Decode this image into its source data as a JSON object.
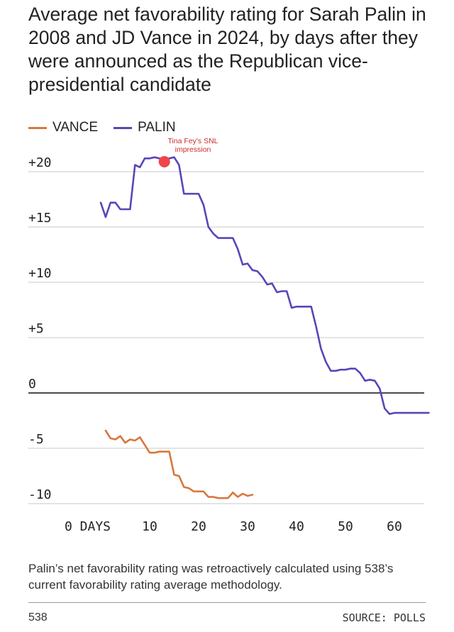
{
  "chart_data": {
    "type": "line",
    "title": "Average net favorability rating for Sarah Palin in 2008 and JD Vance in 2024, by days after they were announced as the Republican vice-presidential candidate",
    "xlabel": "",
    "ylabel": "",
    "xlim": [
      0,
      67
    ],
    "ylim": [
      -11,
      21.5
    ],
    "x_ticks": [
      {
        "value": 0,
        "label": "0 DAYS"
      },
      {
        "value": 10,
        "label": "10"
      },
      {
        "value": 20,
        "label": "20"
      },
      {
        "value": 30,
        "label": "30"
      },
      {
        "value": 40,
        "label": "40"
      },
      {
        "value": 50,
        "label": "50"
      },
      {
        "value": 60,
        "label": "60"
      }
    ],
    "y_ticks": [
      {
        "value": 20,
        "label": "+20"
      },
      {
        "value": 15,
        "label": "+15"
      },
      {
        "value": 10,
        "label": "+10"
      },
      {
        "value": 5,
        "label": "+5"
      },
      {
        "value": 0,
        "label": "0"
      },
      {
        "value": -5,
        "label": "-5"
      },
      {
        "value": -10,
        "label": "-10"
      }
    ],
    "grid": true,
    "legend_position": "top-left",
    "series": [
      {
        "name": "VANCE",
        "color": "#d9773d",
        "x": [
          1,
          2,
          3,
          4,
          5,
          6,
          7,
          8,
          10,
          11,
          12,
          13,
          14,
          15,
          16,
          17,
          18,
          19,
          20,
          21,
          22,
          23,
          24,
          25,
          26,
          27,
          28,
          29,
          30,
          31
        ],
        "y": [
          -3.4,
          -4.1,
          -4.2,
          -3.9,
          -4.5,
          -4.2,
          -4.3,
          -4.0,
          -5.4,
          -5.4,
          -5.3,
          -5.3,
          -5.3,
          -7.4,
          -7.5,
          -8.5,
          -8.6,
          -8.9,
          -8.9,
          -8.9,
          -9.4,
          -9.4,
          -9.5,
          -9.5,
          -9.5,
          -9.0,
          -9.4,
          -9.1,
          -9.3,
          -9.2
        ]
      },
      {
        "name": "PALIN",
        "color": "#5b45b8",
        "x": [
          0,
          1,
          2,
          3,
          4,
          5,
          6,
          7,
          8,
          9,
          10,
          11,
          12,
          13,
          14,
          15,
          16,
          17,
          18,
          19,
          20,
          21,
          22,
          23,
          24,
          25,
          26,
          27,
          28,
          29,
          30,
          31,
          32,
          33,
          34,
          35,
          36,
          37,
          38,
          39,
          40,
          41,
          42,
          43,
          44,
          45,
          46,
          47,
          48,
          49,
          50,
          51,
          52,
          53,
          54,
          55,
          56,
          57,
          58,
          59,
          60,
          61,
          62,
          63,
          64,
          65,
          66,
          67
        ],
        "y": [
          17.2,
          15.9,
          17.2,
          17.2,
          16.6,
          16.6,
          16.6,
          20.6,
          20.4,
          21.2,
          21.2,
          21.3,
          21.2,
          20.6,
          21.2,
          21.3,
          20.6,
          18.0,
          18.0,
          18.0,
          18.0,
          17.0,
          15.0,
          14.4,
          14.0,
          14.0,
          14.0,
          14.0,
          13.0,
          11.6,
          11.7,
          11.1,
          11.0,
          10.5,
          9.8,
          9.9,
          9.1,
          9.2,
          9.2,
          7.7,
          7.8,
          7.8,
          7.8,
          7.8,
          6.0,
          4.0,
          2.8,
          2.0,
          2.0,
          2.1,
          2.1,
          2.2,
          2.2,
          1.8,
          1.1,
          1.2,
          1.1,
          0.4,
          -1.4,
          -1.9,
          -1.8,
          -1.8,
          -1.8,
          -1.8,
          -1.8,
          -1.8,
          -1.8,
          -1.8
        ]
      }
    ],
    "annotations": [
      {
        "x": 13,
        "y": 20.9,
        "text": "Tina Fey's SNL impression",
        "lines": [
          "Tina Fey's SNL",
          "impression"
        ],
        "color": "#f0464b"
      }
    ]
  },
  "legend": {
    "items": [
      {
        "label": "VANCE",
        "color": "#d9773d"
      },
      {
        "label": "PALIN",
        "color": "#5b45b8"
      }
    ]
  },
  "note": "Palin’s net favorability rating was retroactively calculated using 538’s current favorability rating average methodology.",
  "footer": {
    "left": "538",
    "right": "SOURCE: POLLS"
  }
}
